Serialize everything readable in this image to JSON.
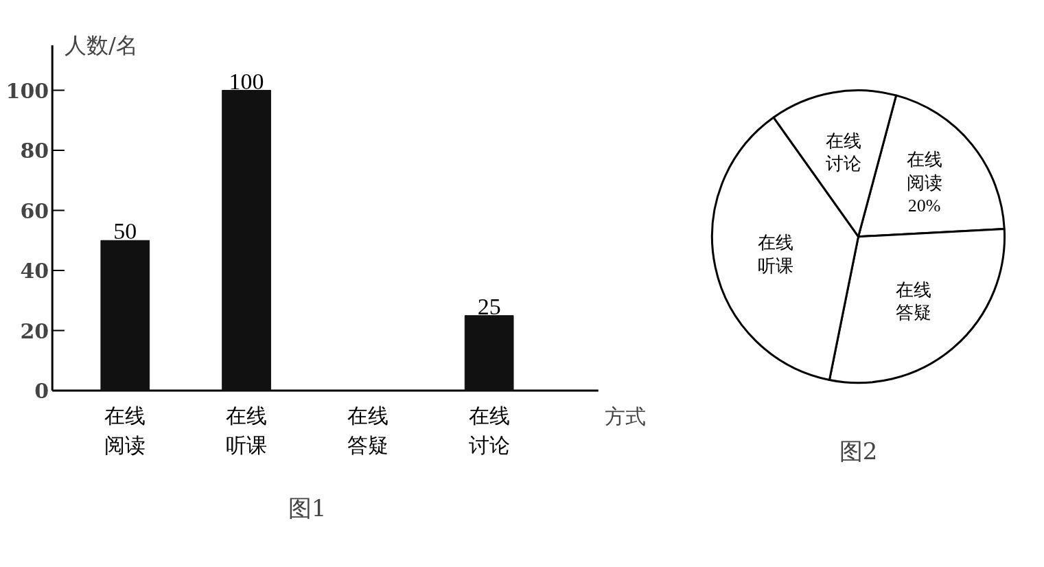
{
  "chart_data": [
    {
      "type": "bar",
      "categories": [
        "在线阅读",
        "在线听课",
        "在线答疑",
        "在线讨论"
      ],
      "values": [
        50,
        100,
        null,
        25
      ],
      "color": "#111111",
      "data_labels": true,
      "ylabel": "人数/名",
      "xlabel": "方式",
      "ylim": [
        0,
        115
      ],
      "yticks": [
        0,
        20,
        40,
        60,
        80,
        100
      ],
      "grid": false,
      "annotations": [
        "图1"
      ]
    },
    {
      "type": "pie",
      "categories": [
        "在线阅读",
        "在线答疑",
        "在线听课",
        "在线讨论"
      ],
      "values": [
        20,
        29,
        37,
        14
      ],
      "colors": [
        "#ffffff",
        "#ffffff",
        "#ffffff",
        "#ffffff"
      ],
      "value_labels": [
        "20%",
        null,
        null,
        null
      ],
      "annotations": [
        "图2"
      ]
    }
  ]
}
